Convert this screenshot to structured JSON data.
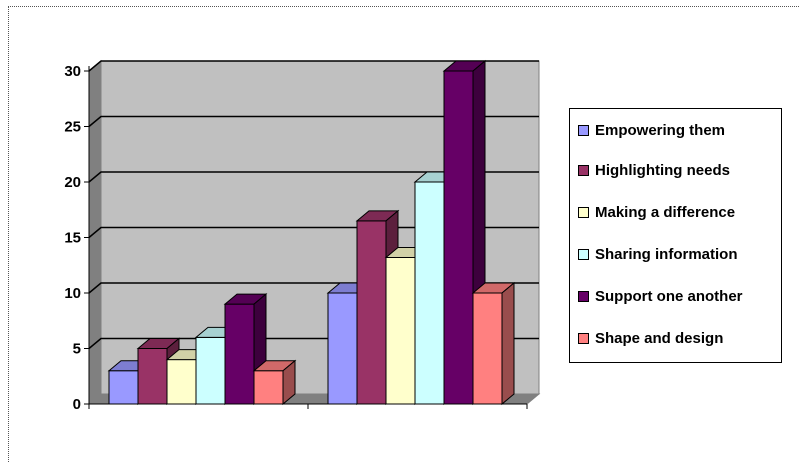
{
  "chart_data": {
    "type": "bar",
    "title": "",
    "xlabel": "",
    "ylabel": "",
    "ylim": [
      0,
      30
    ],
    "yticks": [
      "0",
      "5",
      "10",
      "15",
      "20",
      "25",
      "30"
    ],
    "grid": true,
    "three_d": true,
    "legend_position": "right",
    "categories": [
      "",
      ""
    ],
    "series": [
      {
        "name": "Empowering them",
        "values": [
          3,
          10
        ],
        "color": "#9999ff"
      },
      {
        "name": "Highlighting needs",
        "values": [
          5,
          16.5
        ],
        "color": "#993366"
      },
      {
        "name": "Making a difference",
        "values": [
          4,
          13.2
        ],
        "color": "#ffffcc"
      },
      {
        "name": "Sharing information",
        "values": [
          6,
          20
        ],
        "color": "#ccffff"
      },
      {
        "name": "Support one another",
        "values": [
          9,
          30
        ],
        "color": "#660066"
      },
      {
        "name": "Shape and design",
        "values": [
          3,
          10
        ],
        "color": "#ff8080"
      }
    ],
    "colors": {
      "plot_wall": "#c0c0c0",
      "plot_floor": "#808080",
      "gridline": "#000000"
    }
  }
}
